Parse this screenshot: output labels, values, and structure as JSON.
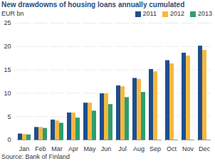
{
  "chart_data": {
    "type": "bar",
    "title": "New drawdowns of housing loans annually cumulated",
    "ylabel": "EUR bn",
    "source": "Source: Bank of Finland",
    "categories": [
      "Jan",
      "Feb",
      "Mar",
      "Apr",
      "May",
      "Jun",
      "Jul",
      "Aug",
      "Sep",
      "Oct",
      "Nov",
      "Dec"
    ],
    "series": [
      {
        "name": "2011",
        "color": "#1f4e8c",
        "values": [
          1.3,
          2.7,
          4.3,
          5.8,
          7.9,
          9.9,
          11.6,
          13.2,
          15.1,
          17.0,
          18.6,
          20.1
        ]
      },
      {
        "name": "2012",
        "color": "#f5b940",
        "values": [
          1.2,
          2.7,
          4.1,
          5.8,
          7.9,
          9.9,
          11.4,
          13.0,
          14.6,
          16.3,
          18.0,
          19.2
        ]
      },
      {
        "name": "2013",
        "color": "#2e9e6e",
        "values": [
          1.1,
          2.5,
          3.6,
          4.7,
          6.2,
          7.6,
          9.1,
          10.2,
          null,
          null,
          null,
          null
        ]
      }
    ],
    "ylim": [
      0,
      25
    ],
    "yticks": [
      0,
      5,
      10,
      15,
      20,
      25
    ],
    "grid": true,
    "legend": "top-right"
  }
}
